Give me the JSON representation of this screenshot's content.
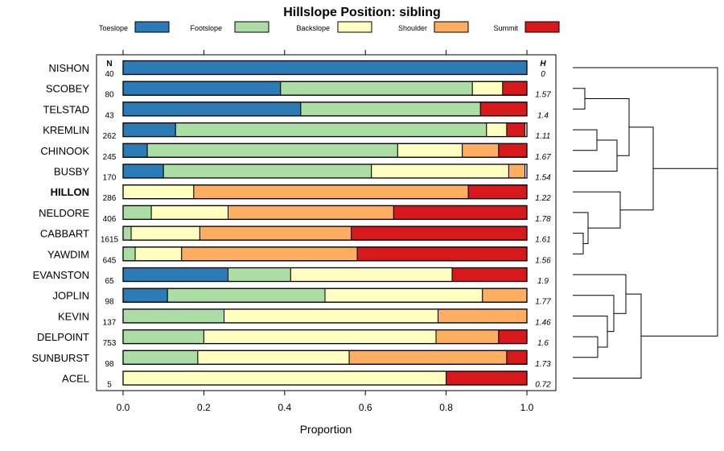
{
  "chart_data": {
    "type": "bar",
    "stacked": true,
    "orientation": "horizontal",
    "title": "Hillslope Position: sibling",
    "xlabel": "Proportion",
    "ylabel": "",
    "xlim": [
      0,
      1
    ],
    "x_ticks": [
      "0.0",
      "0.2",
      "0.4",
      "0.6",
      "0.8",
      "1.0"
    ],
    "x_tick_values": [
      0,
      0.2,
      0.4,
      0.6,
      0.8,
      1.0
    ],
    "n_header": "N",
    "h_header": "H",
    "highlight": "HILLON",
    "legend": [
      {
        "name": "Toeslope",
        "color": "#2B7BB6"
      },
      {
        "name": "Footslope",
        "color": "#ABDDA4"
      },
      {
        "name": "Backslope",
        "color": "#FFFFBF"
      },
      {
        "name": "Shoulder",
        "color": "#FDAE61"
      },
      {
        "name": "Summit",
        "color": "#D7191C"
      }
    ],
    "categories": [
      "NISHON",
      "SCOBEY",
      "TELSTAD",
      "KREMLIN",
      "CHINOOK",
      "BUSBY",
      "HILLON",
      "NELDORE",
      "CABBART",
      "YAWDIM",
      "EVANSTON",
      "JOPLIN",
      "KEVIN",
      "DELPOINT",
      "SUNBURST",
      "ACEL"
    ],
    "n": [
      "40",
      "80",
      "43",
      "262",
      "245",
      "170",
      "286",
      "406",
      "1615",
      "645",
      "65",
      "98",
      "137",
      "753",
      "98",
      "5"
    ],
    "h": [
      "0",
      "1.57",
      "1.4",
      "1.11",
      "1.67",
      "1.54",
      "1.22",
      "1.78",
      "1.61",
      "1.56",
      "1.9",
      "1.77",
      "1.46",
      "1.6",
      "1.73",
      "0.72"
    ],
    "series": [
      {
        "name": "Toeslope",
        "values": [
          1.0,
          0.39,
          0.44,
          0.13,
          0.06,
          0.1,
          0.0,
          0.0,
          0.0,
          0.0,
          0.26,
          0.11,
          0.0,
          0.0,
          0.0,
          0.0
        ]
      },
      {
        "name": "Footslope",
        "values": [
          0.0,
          0.475,
          0.445,
          0.77,
          0.62,
          0.515,
          0.0,
          0.07,
          0.02,
          0.03,
          0.155,
          0.39,
          0.25,
          0.2,
          0.185,
          0.0
        ]
      },
      {
        "name": "Backslope",
        "values": [
          0.0,
          0.075,
          0.0,
          0.05,
          0.16,
          0.34,
          0.175,
          0.19,
          0.17,
          0.115,
          0.4,
          0.39,
          0.53,
          0.575,
          0.375,
          0.8
        ]
      },
      {
        "name": "Shoulder",
        "values": [
          0.0,
          0.0,
          0.0,
          0.0,
          0.09,
          0.04,
          0.68,
          0.41,
          0.375,
          0.435,
          0.0,
          0.11,
          0.22,
          0.155,
          0.39,
          0.0
        ]
      },
      {
        "name": "Summit",
        "values": [
          0.0,
          0.06,
          0.115,
          0.045,
          0.07,
          0.0,
          0.145,
          0.33,
          0.435,
          0.42,
          0.185,
          0.0,
          0.0,
          0.07,
          0.05,
          0.2
        ]
      }
    ]
  }
}
